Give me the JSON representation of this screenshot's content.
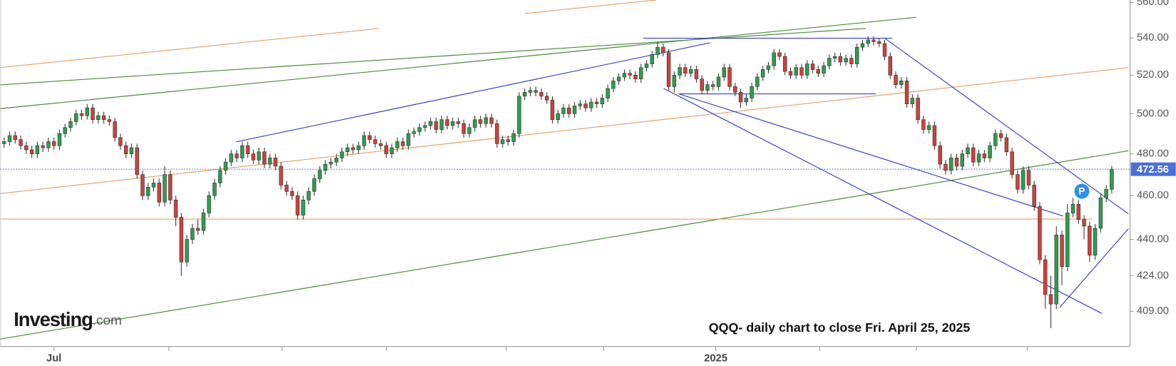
{
  "chart_data": {
    "type": "candlestick",
    "log_scale": true,
    "up_color": "#2e9e4e",
    "down_color": "#d0403c",
    "open": [
      485,
      486,
      489,
      487,
      484,
      482,
      480,
      484,
      483,
      486,
      484,
      490,
      493,
      496,
      500,
      499,
      503,
      497,
      499,
      497,
      496,
      488,
      484,
      480,
      483,
      470,
      460,
      464,
      466,
      457,
      470,
      458,
      450,
      430,
      440,
      445,
      444,
      452,
      460,
      466,
      472,
      476,
      480,
      478,
      484,
      480,
      477,
      481,
      475,
      478,
      474,
      465,
      462,
      460,
      451,
      458,
      462,
      468,
      472,
      475,
      476,
      478,
      481,
      483,
      482,
      484,
      489,
      487,
      485,
      484,
      480,
      483,
      486,
      484,
      490,
      491,
      493,
      494,
      496,
      492,
      497,
      494,
      496,
      495,
      490,
      493,
      497,
      495,
      498,
      495,
      485,
      487,
      486,
      490,
      509,
      511,
      512,
      511,
      509,
      507,
      497,
      500,
      503,
      500,
      504,
      505,
      503,
      506,
      505,
      508,
      513,
      517,
      519,
      521,
      520,
      518,
      524,
      526,
      531,
      535,
      532,
      514,
      520,
      524,
      521,
      523,
      518,
      512,
      515,
      514,
      519,
      524,
      514,
      511,
      506,
      508,
      514,
      519,
      523,
      525,
      532,
      530,
      522,
      520,
      524,
      520,
      526,
      523,
      521,
      525,
      529,
      530,
      527,
      529,
      526,
      535,
      537,
      539,
      538,
      537,
      530,
      520,
      515,
      517,
      505,
      508,
      497,
      492,
      494,
      484,
      475,
      472,
      478,
      474,
      480,
      483,
      476,
      480,
      478,
      484,
      490,
      488,
      481,
      470,
      463,
      472,
      465,
      455,
      431,
      416,
      412,
      442,
      428,
      452,
      456,
      449,
      446,
      433,
      445,
      459,
      463
    ],
    "high": [
      488,
      491,
      491,
      489,
      486,
      484,
      486,
      486,
      488,
      488,
      492,
      495,
      498,
      502,
      502,
      505,
      505,
      501,
      501,
      499,
      498,
      490,
      486,
      485,
      485,
      472,
      466,
      468,
      468,
      474,
      472,
      460,
      452,
      442,
      447,
      449,
      454,
      462,
      468,
      474,
      478,
      482,
      482,
      486,
      486,
      482,
      483,
      483,
      480,
      480,
      476,
      467,
      464,
      462,
      460,
      464,
      470,
      474,
      477,
      478,
      480,
      483,
      485,
      485,
      486,
      491,
      491,
      489,
      487,
      486,
      485,
      488,
      488,
      492,
      493,
      495,
      496,
      498,
      498,
      499,
      499,
      498,
      498,
      497,
      495,
      499,
      499,
      500,
      500,
      497,
      489,
      489,
      492,
      511,
      513,
      514,
      514,
      513,
      511,
      509,
      502,
      505,
      505,
      506,
      507,
      507,
      508,
      508,
      510,
      515,
      519,
      521,
      523,
      523,
      522,
      526,
      528,
      533,
      538,
      537,
      534,
      522,
      526,
      526,
      525,
      525,
      520,
      517,
      517,
      521,
      526,
      526,
      516,
      513,
      510,
      516,
      521,
      525,
      527,
      534,
      534,
      532,
      524,
      526,
      526,
      528,
      528,
      525,
      527,
      531,
      532,
      532,
      531,
      531,
      537,
      539,
      541,
      541,
      540,
      539,
      532,
      522,
      519,
      519,
      510,
      510,
      499,
      496,
      496,
      486,
      477,
      480,
      480,
      482,
      485,
      485,
      482,
      482,
      486,
      492,
      492,
      490,
      483,
      472,
      474,
      474,
      467,
      457,
      433,
      424,
      446,
      444,
      456,
      459,
      458,
      451,
      448,
      447,
      461,
      465,
      474
    ],
    "low": [
      483,
      484,
      485,
      482,
      480,
      478,
      478,
      481,
      481,
      482,
      482,
      488,
      491,
      494,
      497,
      497,
      495,
      495,
      495,
      494,
      486,
      482,
      478,
      478,
      468,
      458,
      458,
      462,
      455,
      455,
      456,
      446,
      424,
      428,
      438,
      442,
      442,
      450,
      458,
      464,
      470,
      474,
      476,
      476,
      478,
      475,
      475,
      473,
      473,
      472,
      463,
      460,
      458,
      449,
      449,
      456,
      460,
      466,
      470,
      473,
      474,
      476,
      479,
      480,
      480,
      482,
      485,
      483,
      482,
      478,
      478,
      481,
      482,
      482,
      488,
      489,
      491,
      492,
      490,
      490,
      492,
      492,
      493,
      488,
      488,
      491,
      493,
      493,
      493,
      483,
      483,
      484,
      484,
      488,
      507,
      509,
      509,
      507,
      505,
      495,
      495,
      498,
      498,
      498,
      502,
      501,
      501,
      503,
      503,
      506,
      511,
      515,
      517,
      518,
      516,
      516,
      522,
      524,
      529,
      530,
      512,
      511,
      518,
      519,
      519,
      516,
      510,
      510,
      512,
      512,
      517,
      512,
      509,
      503,
      504,
      506,
      512,
      517,
      521,
      523,
      528,
      520,
      518,
      518,
      518,
      518,
      521,
      519,
      519,
      523,
      527,
      525,
      525,
      524,
      524,
      533,
      535,
      536,
      535,
      528,
      518,
      513,
      513,
      503,
      503,
      495,
      490,
      490,
      482,
      473,
      470,
      470,
      472,
      472,
      478,
      474,
      474,
      476,
      476,
      482,
      486,
      479,
      468,
      461,
      461,
      463,
      453,
      429,
      410,
      402,
      410,
      420,
      426,
      450,
      447,
      440,
      430,
      431,
      443,
      457,
      461
    ],
    "close": [
      486,
      489,
      487,
      484,
      482,
      480,
      484,
      483,
      486,
      484,
      490,
      493,
      496,
      500,
      499,
      503,
      497,
      499,
      497,
      496,
      488,
      484,
      480,
      483,
      470,
      460,
      464,
      466,
      457,
      470,
      458,
      450,
      430,
      440,
      445,
      444,
      452,
      460,
      466,
      472,
      476,
      480,
      478,
      484,
      480,
      477,
      481,
      475,
      478,
      474,
      465,
      462,
      460,
      451,
      458,
      462,
      468,
      472,
      475,
      476,
      478,
      481,
      483,
      482,
      484,
      489,
      487,
      485,
      484,
      480,
      483,
      486,
      484,
      490,
      491,
      493,
      494,
      496,
      492,
      497,
      494,
      496,
      495,
      490,
      493,
      497,
      495,
      498,
      495,
      485,
      487,
      486,
      490,
      509,
      511,
      512,
      511,
      509,
      507,
      497,
      500,
      503,
      500,
      504,
      505,
      503,
      506,
      505,
      508,
      513,
      517,
      519,
      521,
      520,
      518,
      524,
      526,
      531,
      535,
      532,
      514,
      520,
      524,
      521,
      523,
      518,
      512,
      515,
      514,
      519,
      524,
      514,
      511,
      506,
      508,
      514,
      519,
      523,
      525,
      532,
      530,
      522,
      520,
      524,
      520,
      526,
      523,
      521,
      525,
      529,
      530,
      527,
      529,
      526,
      535,
      537,
      539,
      538,
      537,
      530,
      520,
      515,
      517,
      505,
      508,
      497,
      492,
      494,
      484,
      475,
      472,
      478,
      474,
      480,
      483,
      476,
      480,
      478,
      484,
      490,
      488,
      481,
      470,
      463,
      472,
      465,
      455,
      431,
      416,
      412,
      442,
      428,
      452,
      456,
      449,
      446,
      433,
      445,
      459,
      463,
      472.56
    ],
    "xlim": [
      -0.7,
      203.3
    ],
    "xticks": [
      {
        "value": 9,
        "label": "Jul"
      },
      {
        "value": 128.5,
        "label": "2025"
      }
    ],
    "ylim": [
      394.6,
      561.3
    ],
    "yticks": [
      {
        "value": 560,
        "label": "560.00"
      },
      {
        "value": 540,
        "label": "540.00"
      },
      {
        "value": 520,
        "label": "520.00"
      },
      {
        "value": 500,
        "label": "500.00"
      },
      {
        "value": 480,
        "label": "480.00"
      },
      {
        "value": 460,
        "label": "460.00"
      },
      {
        "value": 440,
        "label": "440.00"
      },
      {
        "value": 424,
        "label": "424.00"
      },
      {
        "value": 409,
        "label": "409.00"
      }
    ],
    "last_price_color": "#4a6fd8",
    "lines": [
      {
        "color": "#e8a060",
        "x": [
          -0.7,
          67.7
        ],
        "y": [
          524.0,
          545.3
        ]
      },
      {
        "color": "#e8a060",
        "x": [
          94.0,
          117.7
        ],
        "y": [
          553.6,
          561.3
        ]
      },
      {
        "color": "#4c8a3a",
        "x": [
          -0.7,
          155.6
        ],
        "y": [
          514.9,
          545.3
        ]
      },
      {
        "color": "#4c8a3a",
        "x": [
          -0.7,
          164.7
        ],
        "y": [
          502.6,
          551.5
        ]
      },
      {
        "color": "#4c8a3a",
        "x": [
          -0.7,
          203
        ],
        "y": [
          397.6,
          481.5
        ]
      },
      {
        "color": "#e8a060",
        "x": [
          -0.7,
          203
        ],
        "y": [
          461.0,
          524.0
        ]
      },
      {
        "color": "#e8a060",
        "x": [
          -0.7,
          196.5
        ],
        "y": [
          449.2,
          449.2
        ]
      },
      {
        "color": "#3a3fc0",
        "x": [
          41.9,
          127.5
        ],
        "y": [
          485.9,
          537.4
        ]
      },
      {
        "color": "#3a3fc0",
        "x": [
          115.4,
          160.4
        ],
        "y": [
          539.9,
          539.9
        ]
      },
      {
        "color": "#3a3fc0",
        "x": [
          121.8,
          157.4
        ],
        "y": [
          510.2,
          510.2
        ]
      },
      {
        "color": "#3a3fc0",
        "x": [
          159.0,
          203
        ],
        "y": [
          539.9,
          451.6
        ]
      },
      {
        "color": "#3a3fc0",
        "x": [
          119.1,
          198.2
        ],
        "y": [
          513.0,
          408.1
        ]
      },
      {
        "color": "#3a3fc0",
        "x": [
          121.8,
          191.2
        ],
        "y": [
          510.2,
          450.6
        ]
      },
      {
        "color": "#3a3fc0",
        "x": [
          190.6,
          203
        ],
        "y": [
          410.6,
          444.8
        ]
      }
    ],
    "marker": {
      "label": "P",
      "x": 194.6,
      "y": 462.1,
      "color": "#2d8fe6"
    },
    "annotation": "QQQ- daily chart to close Fri. April 25, 2025",
    "logo": {
      "name": "Investing",
      "suffix": ".com"
    }
  }
}
